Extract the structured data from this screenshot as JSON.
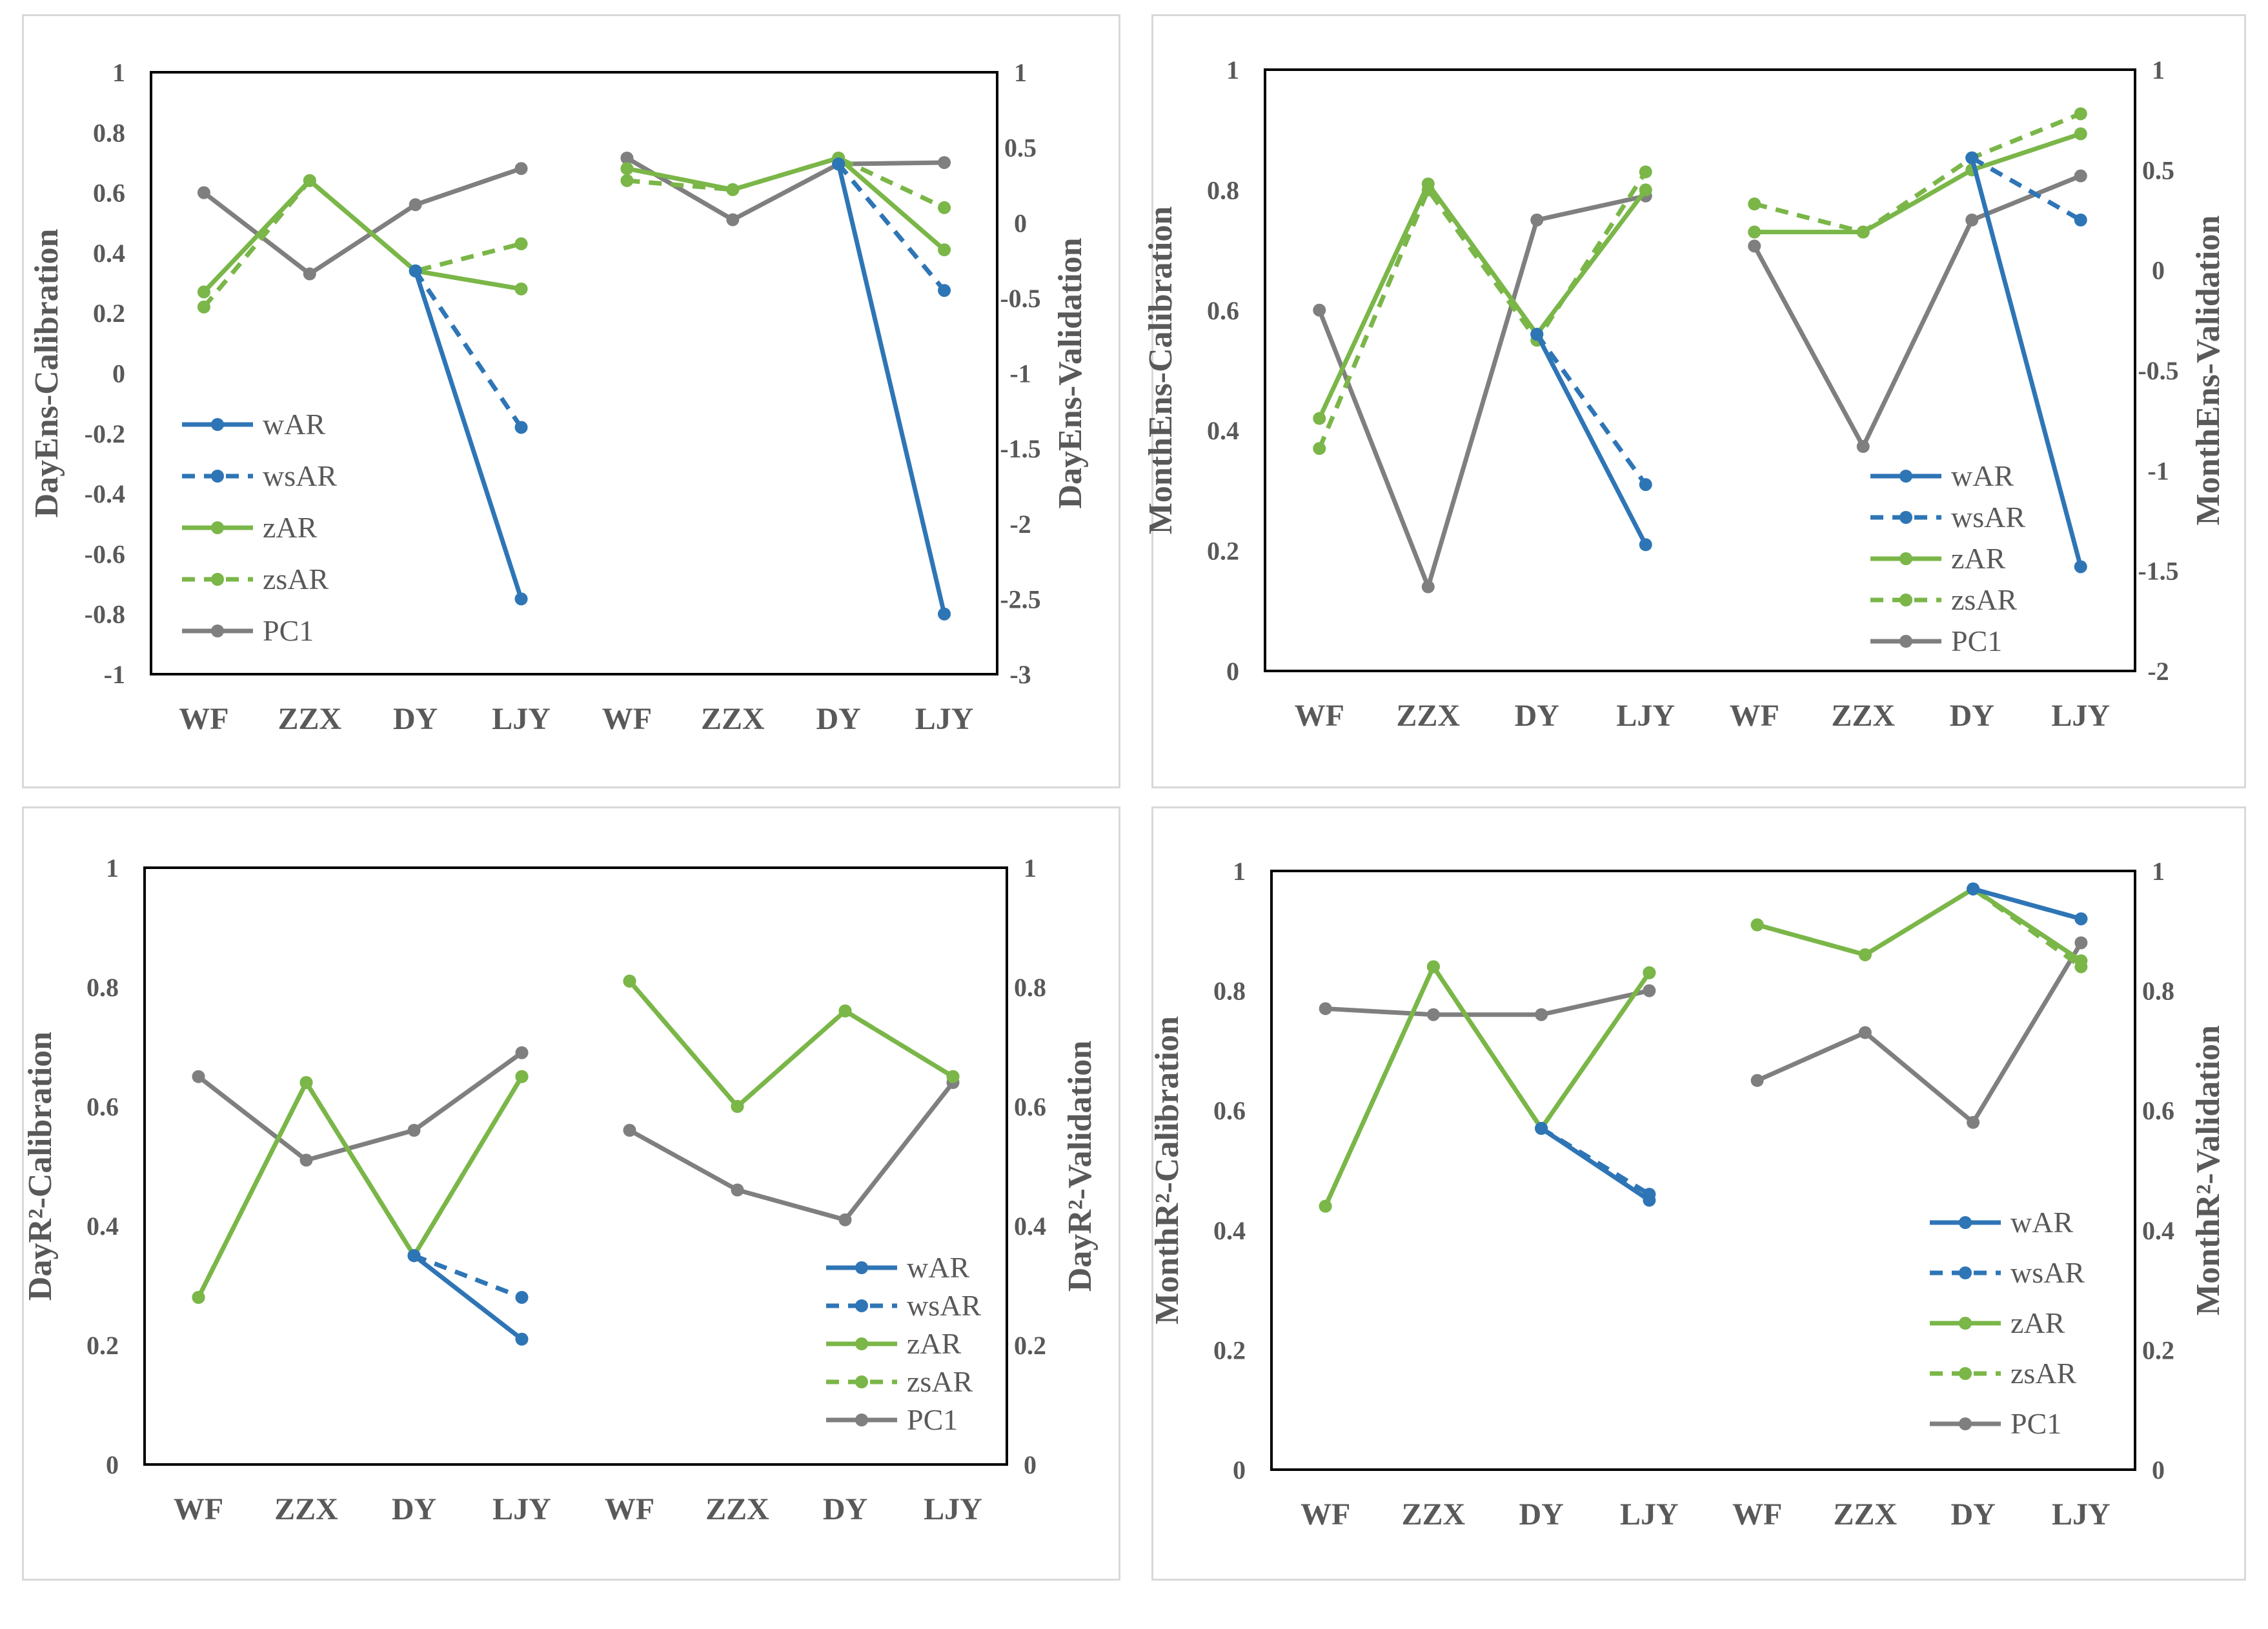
{
  "colors": {
    "wAR": "#2e75b6",
    "wsAR": "#2e75b6",
    "zAR": "#7ab648",
    "zsAR": "#7ab648",
    "PC1": "#7f7f7f",
    "axis": "#000000",
    "text": "#595959"
  },
  "series_styles": {
    "wAR": "solid",
    "wsAR": "dashed",
    "zAR": "solid",
    "zsAR": "dashed",
    "PC1": "solid"
  },
  "chart_data": [
    {
      "id": "day-ens",
      "type": "line",
      "legend_position": "left",
      "categories": [
        "WF",
        "ZZX",
        "DY",
        "LJY",
        "WF",
        "ZZX",
        "DY",
        "LJY"
      ],
      "ylabel_left": "DayEns-Calibration",
      "ylabel_right": "DayEns-Validation",
      "ylim_left": [
        -1,
        1
      ],
      "yticks_left": [
        "1",
        "0.8",
        "0.6",
        "0.4",
        "0.2",
        "0",
        "-0.2",
        "-0.4",
        "-0.6",
        "-0.8",
        "-1"
      ],
      "ylim_right": [
        -3,
        1
      ],
      "yticks_right": [
        "1",
        "0.5",
        "0",
        "-0.5",
        "-1",
        "-1.5",
        "-2",
        "-2.5",
        "-3"
      ],
      "legend": [
        "wAR",
        "wsAR",
        "zAR",
        "zsAR",
        "PC1"
      ],
      "series": [
        {
          "name": "PC1",
          "calibration": [
            0.6,
            0.33,
            0.56,
            0.68
          ],
          "validation": [
            0.43,
            0.02,
            0.39,
            0.4
          ]
        },
        {
          "name": "zAR",
          "calibration": [
            0.27,
            0.64,
            0.34,
            0.28
          ],
          "validation": [
            0.36,
            0.22,
            0.43,
            -0.18
          ]
        },
        {
          "name": "zsAR",
          "calibration": [
            0.22,
            0.64,
            0.34,
            0.43
          ],
          "validation": [
            0.28,
            0.22,
            0.43,
            0.1
          ]
        },
        {
          "name": "wAR",
          "calibration": [
            null,
            null,
            0.34,
            -0.75
          ],
          "validation": [
            null,
            null,
            0.39,
            -2.6
          ]
        },
        {
          "name": "wsAR",
          "calibration": [
            null,
            null,
            0.34,
            -0.18
          ],
          "validation": [
            null,
            null,
            0.39,
            -0.45
          ]
        }
      ]
    },
    {
      "id": "month-ens",
      "type": "line",
      "legend_position": "bottom-right",
      "categories": [
        "WF",
        "ZZX",
        "DY",
        "LJY",
        "WF",
        "ZZX",
        "DY",
        "LJY"
      ],
      "ylabel_left": "MonthEns-Calibration",
      "ylabel_right": "MonthEns-Validation",
      "ylim_left": [
        0,
        1
      ],
      "yticks_left": [
        "1",
        "0.8",
        "0.6",
        "0.4",
        "0.2",
        "0"
      ],
      "ylim_right": [
        -2,
        1
      ],
      "yticks_right": [
        "1",
        "0.5",
        "0",
        "-0.5",
        "-1",
        "-1.5",
        "-2"
      ],
      "legend": [
        "wAR",
        "wsAR",
        "zAR",
        "zsAR",
        "PC1"
      ],
      "series": [
        {
          "name": "PC1",
          "calibration": [
            0.6,
            0.14,
            0.75,
            0.79
          ],
          "validation": [
            0.12,
            -0.88,
            0.25,
            0.47
          ]
        },
        {
          "name": "zAR",
          "calibration": [
            0.42,
            0.81,
            0.56,
            0.8
          ],
          "validation": [
            0.19,
            0.19,
            0.5,
            0.68
          ]
        },
        {
          "name": "zsAR",
          "calibration": [
            0.37,
            0.8,
            0.55,
            0.83
          ],
          "validation": [
            0.33,
            0.19,
            0.56,
            0.78
          ]
        },
        {
          "name": "wAR",
          "calibration": [
            null,
            null,
            0.56,
            0.21
          ],
          "validation": [
            null,
            null,
            0.56,
            -1.48
          ]
        },
        {
          "name": "wsAR",
          "calibration": [
            null,
            null,
            0.56,
            0.31
          ],
          "validation": [
            null,
            null,
            0.56,
            0.25
          ]
        }
      ]
    },
    {
      "id": "day-r2",
      "type": "line",
      "legend_position": "bottom-right",
      "categories": [
        "WF",
        "ZZX",
        "DY",
        "LJY",
        "WF",
        "ZZX",
        "DY",
        "LJY"
      ],
      "ylabel_left": "DayR²-Calibration",
      "ylabel_right": "DayR²-Validation",
      "ylim_left": [
        0,
        1
      ],
      "yticks_left": [
        "1",
        "0.8",
        "0.6",
        "0.4",
        "0.2",
        "0"
      ],
      "ylim_right": [
        0,
        1
      ],
      "yticks_right": [
        "1",
        "0.8",
        "0.6",
        "0.4",
        "0.2",
        "0"
      ],
      "legend": [
        "wAR",
        "wsAR",
        "zAR",
        "zsAR",
        "PC1"
      ],
      "series": [
        {
          "name": "PC1",
          "calibration": [
            0.65,
            0.51,
            0.56,
            0.69
          ],
          "validation": [
            0.56,
            0.46,
            0.41,
            0.64
          ]
        },
        {
          "name": "zAR",
          "calibration": [
            0.28,
            0.64,
            0.35,
            0.65
          ],
          "validation": [
            0.81,
            0.6,
            0.76,
            0.65
          ]
        },
        {
          "name": "zsAR",
          "calibration": [
            0.28,
            0.64,
            0.35,
            0.65
          ],
          "validation": [
            0.81,
            0.6,
            0.76,
            0.65
          ]
        },
        {
          "name": "wAR",
          "calibration": [
            null,
            null,
            0.35,
            0.21
          ],
          "validation": [
            null,
            null,
            null,
            null
          ]
        },
        {
          "name": "wsAR",
          "calibration": [
            null,
            null,
            0.35,
            0.28
          ],
          "validation": [
            null,
            null,
            null,
            null
          ]
        }
      ]
    },
    {
      "id": "month-r2",
      "type": "line",
      "legend_position": "bottom-right",
      "categories": [
        "WF",
        "ZZX",
        "DY",
        "LJY",
        "WF",
        "ZZX",
        "DY",
        "LJY"
      ],
      "ylabel_left": "MonthR²-Calibration",
      "ylabel_right": "MonthR²-Validation",
      "ylim_left": [
        0,
        1
      ],
      "yticks_left": [
        "1",
        "0.8",
        "0.6",
        "0.4",
        "0.2",
        "0"
      ],
      "ylim_right": [
        0,
        1
      ],
      "yticks_right": [
        "1",
        "0.8",
        "0.6",
        "0.4",
        "0.2",
        "0"
      ],
      "legend": [
        "wAR",
        "wsAR",
        "zAR",
        "zsAR",
        "PC1"
      ],
      "series": [
        {
          "name": "PC1",
          "calibration": [
            0.77,
            0.76,
            0.76,
            0.8
          ],
          "validation": [
            0.65,
            0.73,
            0.58,
            0.88
          ]
        },
        {
          "name": "zAR",
          "calibration": [
            0.44,
            0.84,
            0.57,
            0.83
          ],
          "validation": [
            0.91,
            0.86,
            0.97,
            0.85
          ]
        },
        {
          "name": "zsAR",
          "calibration": [
            0.44,
            0.84,
            0.57,
            0.83
          ],
          "validation": [
            0.91,
            0.86,
            0.97,
            0.84
          ]
        },
        {
          "name": "wAR",
          "calibration": [
            null,
            null,
            0.57,
            0.45
          ],
          "validation": [
            null,
            null,
            0.97,
            0.92
          ]
        },
        {
          "name": "wsAR",
          "calibration": [
            null,
            null,
            0.57,
            0.46
          ],
          "validation": [
            null,
            null,
            0.97,
            0.92
          ]
        }
      ]
    }
  ]
}
